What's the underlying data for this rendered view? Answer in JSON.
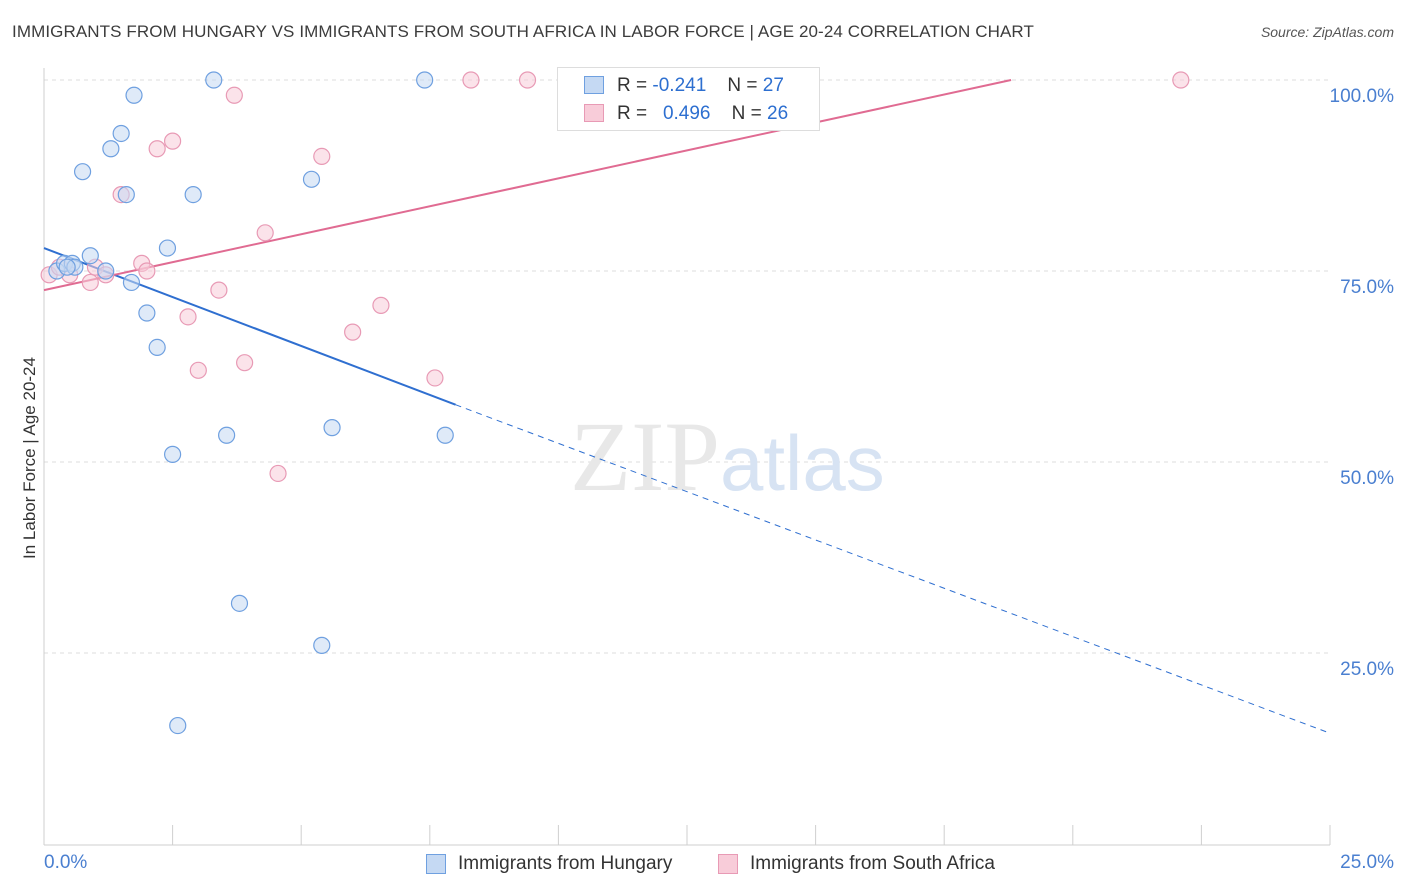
{
  "title": "IMMIGRANTS FROM HUNGARY VS IMMIGRANTS FROM SOUTH AFRICA IN LABOR FORCE | AGE 20-24 CORRELATION CHART",
  "source": "Source: ZipAtlas.com",
  "watermark": "ZIPatlas",
  "legend": {
    "hungary": {
      "r_label": "R =",
      "r_value": "-0.241",
      "n_label": "N =",
      "n_value": "27"
    },
    "south_africa": {
      "r_label": "R =",
      "r_value": "0.496",
      "n_label": "N =",
      "n_value": "26"
    }
  },
  "chart_data": {
    "type": "scatter",
    "title": "IMMIGRANTS FROM HUNGARY VS IMMIGRANTS FROM SOUTH AFRICA IN LABOR FORCE | AGE 20-24 CORRELATION CHART",
    "xlabel": "",
    "ylabel": "In Labor Force | Age 20-24",
    "xlim": [
      0,
      25
    ],
    "ylim": [
      0,
      102
    ],
    "x_tick_labels": [
      "0.0%",
      "25.0%"
    ],
    "y_ticks": [
      25,
      50,
      75,
      100
    ],
    "y_tick_labels": [
      "25.0%",
      "50.0%",
      "75.0%",
      "100.0%"
    ],
    "grid": true,
    "legend_position": "top-center",
    "series": [
      {
        "name": "Immigrants from Hungary",
        "color": "#6fa0e0",
        "fill": "#c5d9f3",
        "trend": {
          "x0": 0,
          "y0": 78.0,
          "x1": 8.0,
          "y1": 57.5,
          "dashed_to_x": 25,
          "dashed_to_y": 14.5,
          "color": "#2f6fd0"
        },
        "points": [
          [
            0.25,
            75.0
          ],
          [
            0.4,
            76.0
          ],
          [
            0.55,
            76.0
          ],
          [
            0.6,
            75.5
          ],
          [
            0.9,
            77.0
          ],
          [
            0.75,
            88.0
          ],
          [
            1.3,
            91.0
          ],
          [
            1.5,
            93.0
          ],
          [
            1.6,
            85.0
          ],
          [
            1.7,
            73.5
          ],
          [
            1.75,
            98.0
          ],
          [
            2.0,
            69.5
          ],
          [
            2.2,
            65.0
          ],
          [
            2.4,
            78.0
          ],
          [
            2.5,
            51.0
          ],
          [
            2.9,
            85.0
          ],
          [
            3.3,
            100.0
          ],
          [
            3.55,
            53.5
          ],
          [
            3.8,
            31.5
          ],
          [
            5.2,
            87.0
          ],
          [
            5.4,
            26.0
          ],
          [
            5.6,
            54.5
          ],
          [
            7.4,
            100.0
          ],
          [
            7.8,
            53.5
          ],
          [
            2.6,
            15.5
          ],
          [
            1.2,
            75.0
          ],
          [
            0.45,
            75.5
          ]
        ]
      },
      {
        "name": "Immigrants from South Africa",
        "color": "#e89ab5",
        "fill": "#f8ccd9",
        "trend": {
          "x0": 0,
          "y0": 72.5,
          "x1": 18.8,
          "y1": 100.0,
          "color": "#e06b92"
        },
        "points": [
          [
            0.1,
            74.5
          ],
          [
            0.3,
            75.5
          ],
          [
            0.5,
            74.5
          ],
          [
            0.9,
            73.5
          ],
          [
            1.0,
            75.5
          ],
          [
            1.2,
            74.5
          ],
          [
            1.5,
            85.0
          ],
          [
            1.9,
            76.0
          ],
          [
            2.0,
            75.0
          ],
          [
            2.2,
            91.0
          ],
          [
            2.5,
            92.0
          ],
          [
            2.8,
            69.0
          ],
          [
            3.0,
            62.0
          ],
          [
            3.4,
            72.5
          ],
          [
            3.7,
            98.0
          ],
          [
            3.9,
            63.0
          ],
          [
            4.3,
            80.0
          ],
          [
            4.55,
            48.5
          ],
          [
            5.4,
            90.0
          ],
          [
            6.0,
            67.0
          ],
          [
            6.55,
            70.5
          ],
          [
            7.6,
            61.0
          ],
          [
            8.3,
            100.0
          ],
          [
            9.4,
            100.0
          ],
          [
            14.6,
            100.0
          ],
          [
            22.1,
            100.0
          ]
        ]
      }
    ]
  },
  "bottom_legend": {
    "hungary_label": "Immigrants from Hungary",
    "south_africa_label": "Immigrants from South Africa"
  }
}
